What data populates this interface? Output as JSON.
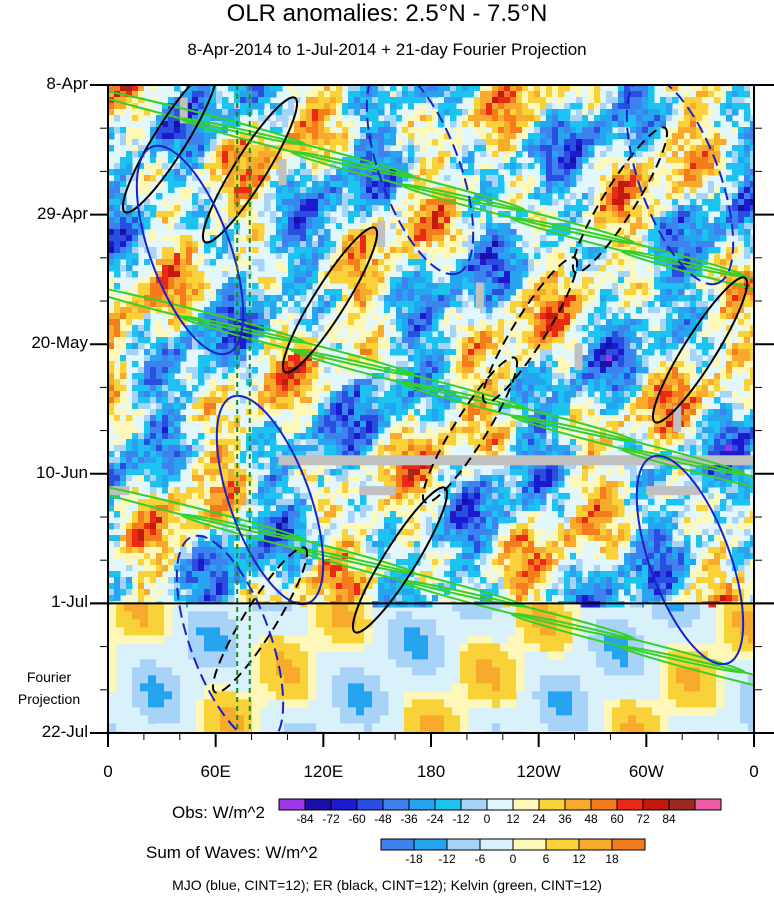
{
  "title": "OLR anomalies: 2.5°N - 7.5°N",
  "subtitle": "8-Apr-2014 to 1-Jul-2014 + 21-day Fourier Projection",
  "footer": "MJO (blue, CINT=12); ER (black, CINT=12); Kelvin (green, CINT=12)",
  "chart_data": {
    "type": "heatmap",
    "x_axis": {
      "tick_labels": [
        "0",
        "60E",
        "120E",
        "180",
        "120W",
        "60W",
        "0"
      ],
      "tick_lon": [
        0,
        60,
        120,
        180,
        240,
        300,
        360
      ]
    },
    "y_axis": {
      "tick_labels": [
        "8-Apr",
        "29-Apr",
        "20-May",
        "10-Jun",
        "1-Jul",
        "22-Jul"
      ],
      "tick_day": [
        0,
        21,
        42,
        63,
        84,
        105
      ],
      "range": [
        "8-Apr-2014",
        "22-Jul-2014"
      ],
      "observation_end": "1-Jul",
      "projection_label": "Fourier Projection"
    },
    "reference_lines_lon": [
      72,
      79
    ],
    "colorbars": [
      {
        "title": "Obs: W/m^2",
        "levels": [
          "-84",
          "-72",
          "-60",
          "-48",
          "-36",
          "-24",
          "-12",
          "0",
          "12",
          "24",
          "36",
          "48",
          "60",
          "72",
          "84"
        ],
        "colors": [
          "#9f37e8",
          "#1a10a8",
          "#1c1ad0",
          "#2a4fe0",
          "#3d82ee",
          "#26a4f0",
          "#1cc3f0",
          "#a8d3f8",
          "#e2f7fc",
          "#fdf7b8",
          "#f8d238",
          "#f8aa2c",
          "#f47c1c",
          "#ea2a14",
          "#c21a0e",
          "#9a2a22",
          "#ef5ca6"
        ]
      },
      {
        "title": "Sum of Waves: W/m^2",
        "levels": [
          "-18",
          "-12",
          "-6",
          "0",
          "6",
          "12",
          "18"
        ],
        "colors": [
          "#3d82ee",
          "#26a4f0",
          "#a8d3f8",
          "#d9f1fb",
          "#fdf7b8",
          "#f8d238",
          "#f8aa2c",
          "#f47c1c"
        ]
      }
    ],
    "contour_series": [
      {
        "name": "MJO",
        "color": "#1a21c8"
      },
      {
        "name": "ER",
        "color": "#000000"
      },
      {
        "name": "Kelvin",
        "color": "#36d02a"
      }
    ]
  }
}
